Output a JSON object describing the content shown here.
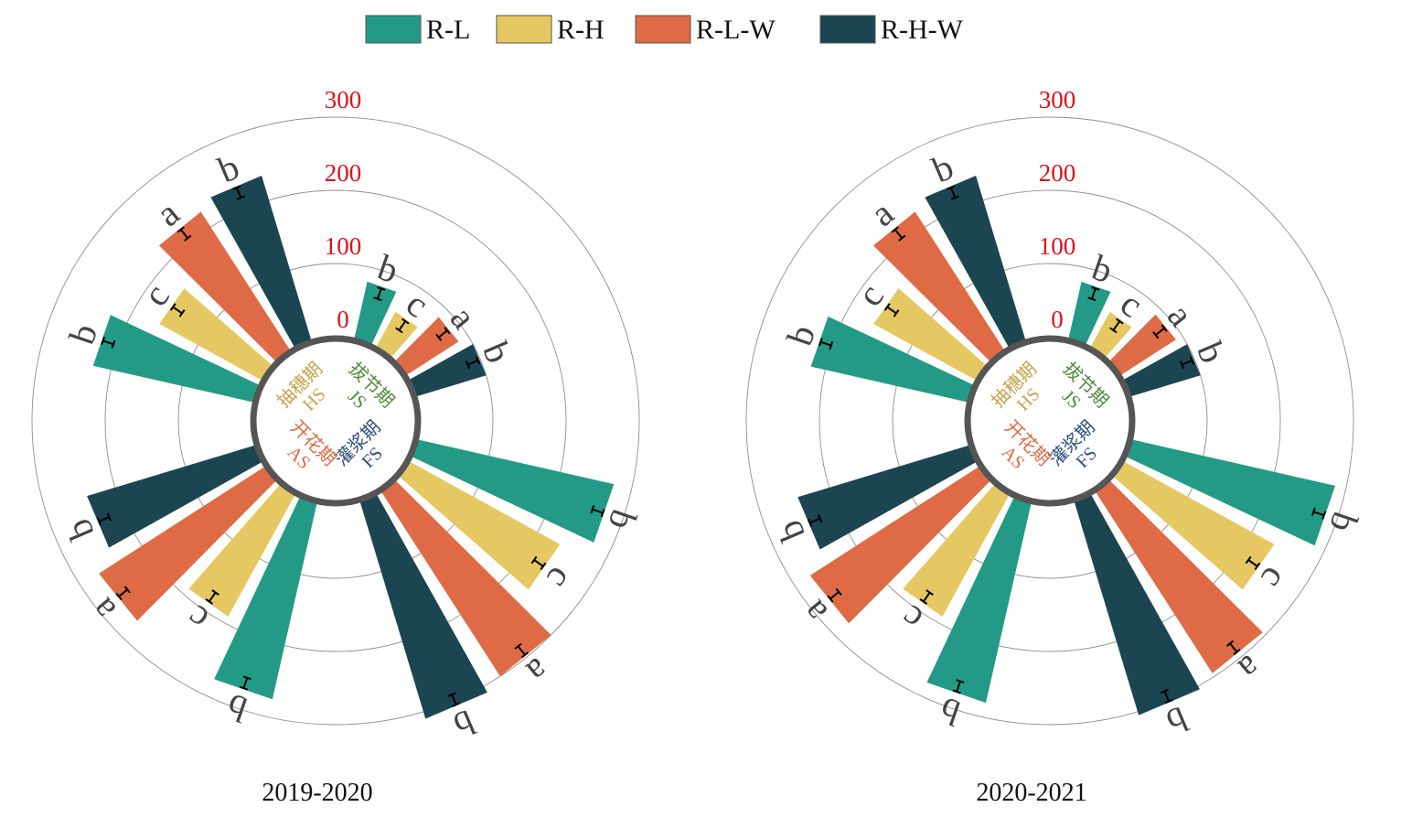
{
  "legend": [
    {
      "label": "R-L",
      "color": "#239a86"
    },
    {
      "label": "R-H",
      "color": "#e5c862"
    },
    {
      "label": "R-L-W",
      "color": "#de6b45"
    },
    {
      "label": "R-H-W",
      "color": "#1c4552"
    }
  ],
  "stages": [
    {
      "cn": "拔节期",
      "abbr": "JS",
      "color": "#4f8a3c"
    },
    {
      "cn": "灌浆期",
      "abbr": "FS",
      "color": "#2c4f7c"
    },
    {
      "cn": "开花期",
      "abbr": "AS",
      "color": "#de6b45"
    },
    {
      "cn": "抽穗期",
      "abbr": "HS",
      "color": "#c9a24a"
    }
  ],
  "chart_data": [
    {
      "type": "bar",
      "subtype": "radial",
      "title": "2019-2020",
      "rticks": [
        "0",
        "100",
        "200",
        "300"
      ],
      "rlim": [
        0,
        300
      ],
      "categories": [
        "JS",
        "FS",
        "AS",
        "HS"
      ],
      "series": [
        {
          "name": "R-L",
          "values": [
            80,
            275,
            275,
            225
          ],
          "letters": [
            "b",
            "b",
            "b",
            "b"
          ]
        },
        {
          "name": "R-H",
          "values": [
            55,
            235,
            190,
            160
          ],
          "letters": [
            "c",
            "c",
            "c",
            "c"
          ]
        },
        {
          "name": "R-L-W",
          "values": [
            85,
            300,
            270,
            225
          ],
          "letters": [
            "a",
            "a",
            "a",
            "a"
          ]
        },
        {
          "name": "R-H-W",
          "values": [
            100,
            310,
            240,
            235
          ],
          "letters": [
            "b",
            "b",
            "b",
            "b"
          ]
        }
      ]
    },
    {
      "type": "bar",
      "subtype": "radial",
      "title": "2020-2021",
      "rticks": [
        "0",
        "100",
        "200",
        "300"
      ],
      "rlim": [
        0,
        300
      ],
      "categories": [
        "JS",
        "FS",
        "AS",
        "HS"
      ],
      "series": [
        {
          "name": "R-L",
          "values": [
            80,
            285,
            280,
            220
          ],
          "letters": [
            "b",
            "b",
            "b",
            "b"
          ]
        },
        {
          "name": "R-H",
          "values": [
            55,
            235,
            190,
            160
          ],
          "letters": [
            "c",
            "c",
            "c",
            "c"
          ]
        },
        {
          "name": "R-L-W",
          "values": [
            90,
            295,
            275,
            225
          ],
          "letters": [
            "a",
            "a",
            "a",
            "a"
          ]
        },
        {
          "name": "R-H-W",
          "values": [
            100,
            305,
            245,
            235
          ],
          "letters": [
            "b",
            "b",
            "b",
            "b"
          ]
        }
      ]
    }
  ]
}
